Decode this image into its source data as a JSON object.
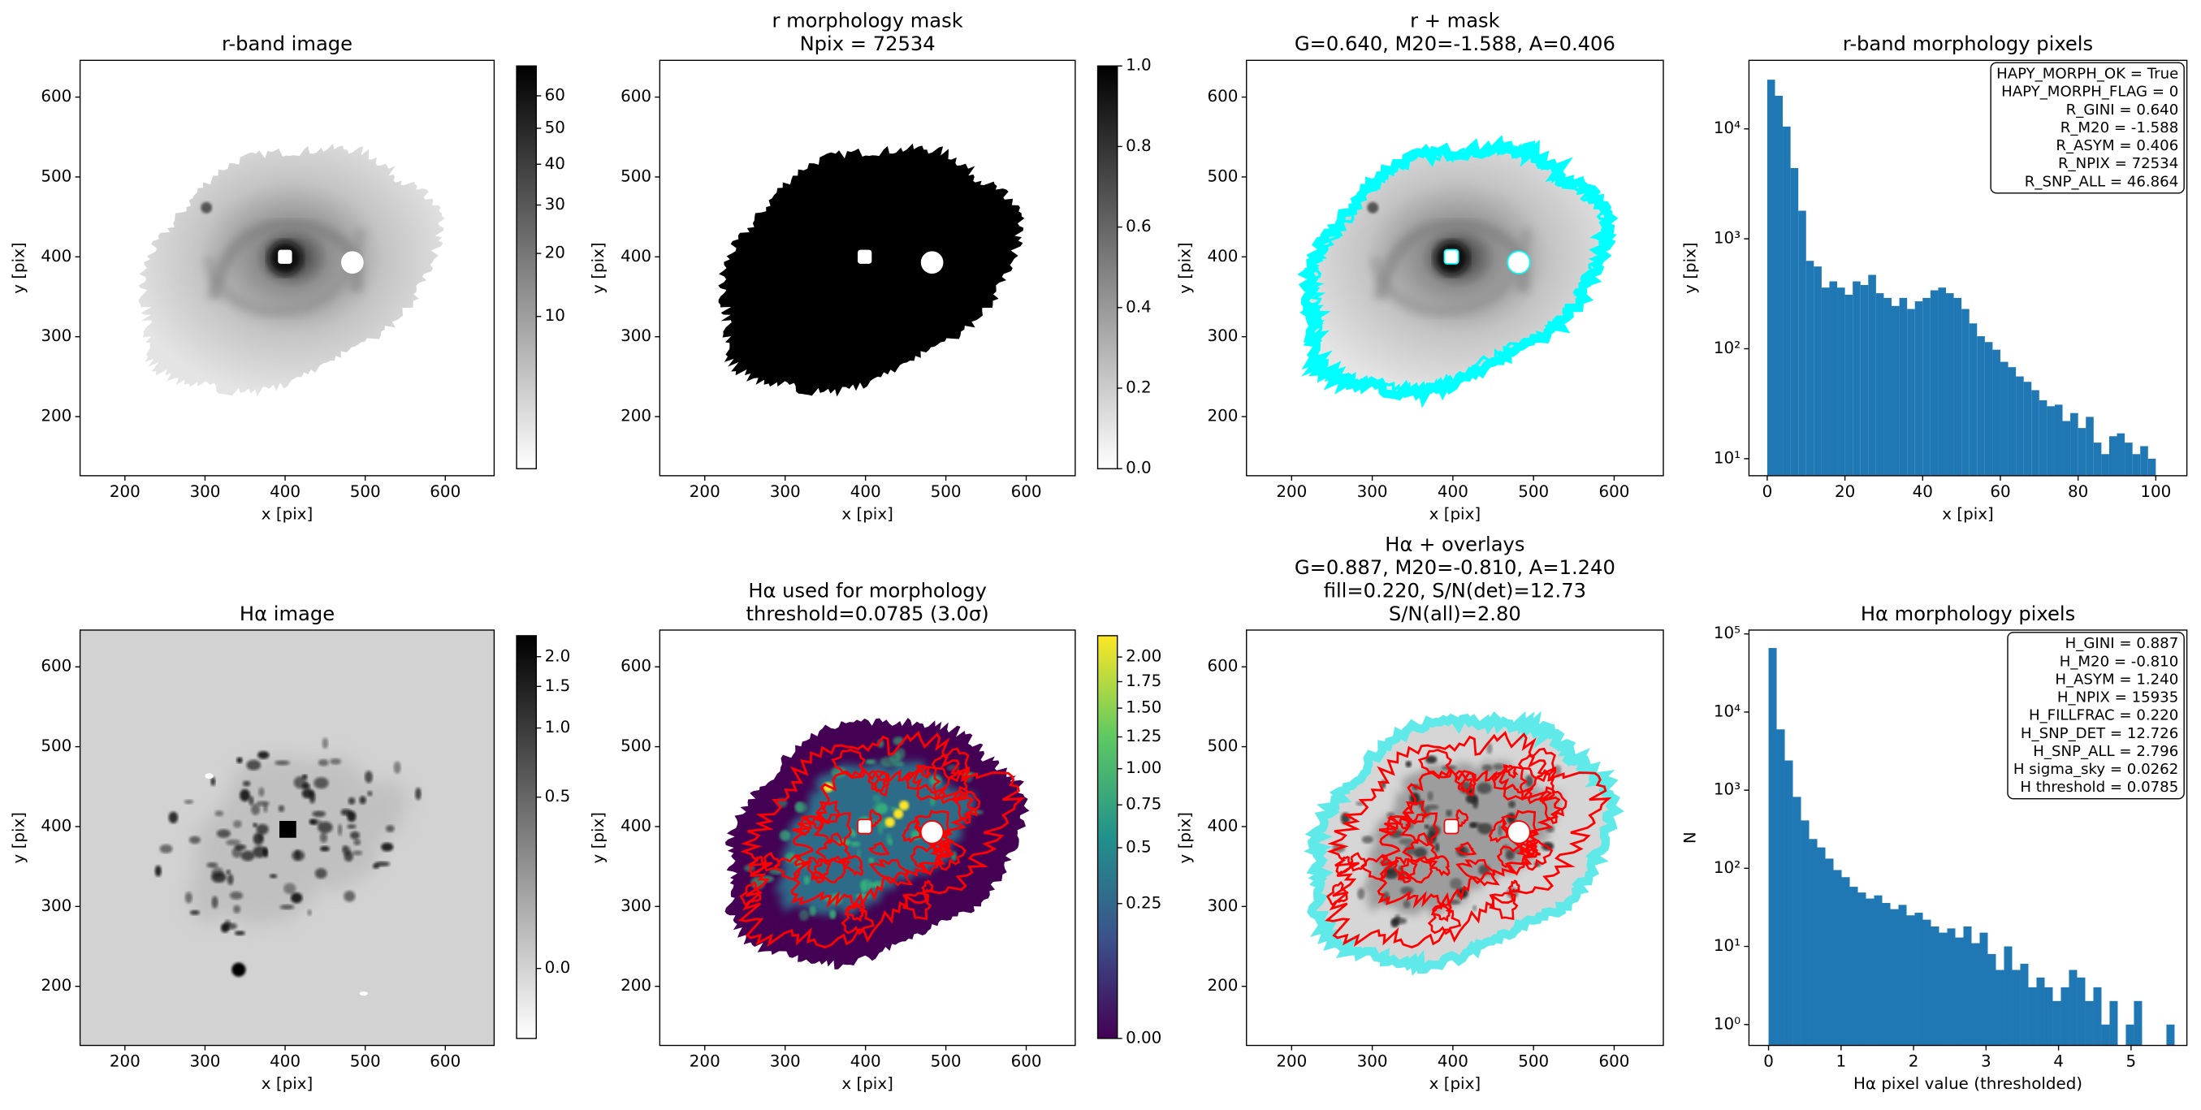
{
  "chart_data": [
    {
      "type": "image",
      "title": [
        "r-band image"
      ],
      "xlabel": "x [pix]",
      "ylabel": "y [pix]",
      "xlim": [
        144,
        661
      ],
      "ylim": [
        126,
        646
      ],
      "xticks": [
        200,
        300,
        400,
        500,
        600
      ],
      "yticks": [
        200,
        300,
        400,
        500,
        600
      ],
      "cmap": "gray_r",
      "colorbar": {
        "clim": [
          0,
          70
        ],
        "scale": "sqrt",
        "ticks": [
          10,
          20,
          30,
          40,
          50,
          60
        ]
      }
    },
    {
      "type": "image",
      "title": [
        "r morphology mask",
        "Npix = 72534"
      ],
      "xlabel": "x [pix]",
      "ylabel": "y [pix]",
      "xlim": [
        144,
        661
      ],
      "ylim": [
        126,
        646
      ],
      "xticks": [
        200,
        300,
        400,
        500,
        600
      ],
      "yticks": [
        200,
        300,
        400,
        500,
        600
      ],
      "cmap": "gray_r",
      "colorbar": {
        "clim": [
          0,
          1
        ],
        "scale": "linear",
        "ticks": [
          {
            "value": 0,
            "label": "0.0"
          },
          0.2,
          0.4,
          0.6,
          0.8,
          {
            "value": 1,
            "label": "1.0"
          }
        ]
      }
    },
    {
      "type": "image",
      "title": [
        "r + mask",
        "G=0.640, M20=-1.588, A=0.406"
      ],
      "xlabel": "x [pix]",
      "ylabel": "y [pix]",
      "xlim": [
        144,
        661
      ],
      "ylim": [
        126,
        646
      ],
      "xticks": [
        200,
        300,
        400,
        500,
        600
      ],
      "yticks": [
        200,
        300,
        400,
        500,
        600
      ],
      "cmap": "gray_r"
    },
    {
      "type": "histogram",
      "title": [
        "r-band morphology pixels"
      ],
      "xlabel": "x [pix]",
      "ylabel": "y [pix]",
      "color": "#1f77b4",
      "log_y": true,
      "bins": [
        0,
        2,
        4,
        6,
        8,
        10,
        12,
        14,
        16,
        18,
        20,
        22,
        24,
        26,
        28,
        30,
        32,
        34,
        36,
        38,
        40,
        42,
        44,
        46,
        48,
        50,
        52,
        54,
        56,
        58,
        60,
        62,
        64,
        66,
        68,
        70,
        72,
        74,
        76,
        78,
        80,
        82,
        84,
        86,
        88,
        90,
        92,
        94,
        96,
        98,
        100
      ],
      "counts": [
        28000,
        20000,
        10500,
        4400,
        1800,
        630,
        560,
        360,
        410,
        360,
        310,
        410,
        380,
        470,
        320,
        290,
        245,
        290,
        230,
        270,
        290,
        340,
        360,
        320,
        290,
        230,
        170,
        130,
        115,
        98,
        76,
        68,
        56,
        50,
        42,
        34,
        30,
        31,
        22,
        26,
        19,
        24,
        14,
        11,
        16,
        17,
        14,
        11,
        13,
        10
      ],
      "xlim": [
        -4.7,
        108
      ],
      "ylim": [
        7,
        42000
      ],
      "xticks": [
        0,
        20,
        40,
        60,
        80,
        100
      ],
      "yticks": [
        {
          "value": 10,
          "label": "10¹"
        },
        {
          "value": 100,
          "label": "10²"
        },
        {
          "value": 1000,
          "label": "10³"
        },
        {
          "value": 10000,
          "label": "10⁴"
        }
      ],
      "annotation": [
        "HAPY_MORPH_OK = True",
        "HAPY_MORPH_FLAG = 0",
        "R_GINI = 0.640",
        "R_M20 = -1.588",
        "R_ASYM = 0.406",
        "R_NPIX = 72534",
        "R_SNP_ALL = 46.864"
      ]
    },
    {
      "type": "image",
      "title": [
        "Hα image"
      ],
      "xlabel": "x [pix]",
      "ylabel": "y [pix]",
      "xlim": [
        144,
        661
      ],
      "ylim": [
        126,
        646
      ],
      "xticks": [
        200,
        300,
        400,
        500,
        600
      ],
      "yticks": [
        200,
        300,
        400,
        500,
        600
      ],
      "cmap": "gray_r",
      "colorbar": {
        "clim": [
          -0.145,
          2.45
        ],
        "scale": "asinh",
        "ticks": [
          {
            "value": 0,
            "label": "0.0"
          },
          0.5,
          {
            "value": 1,
            "label": "1.0"
          },
          1.5,
          {
            "value": 2,
            "label": "2.0"
          }
        ]
      }
    },
    {
      "type": "image",
      "title": [
        "Hα used for morphology",
        "threshold=0.0785 (3.0σ)"
      ],
      "xlabel": "x [pix]",
      "ylabel": "y [pix]",
      "xlim": [
        144,
        661
      ],
      "ylim": [
        126,
        646
      ],
      "xticks": [
        200,
        300,
        400,
        500,
        600
      ],
      "yticks": [
        200,
        300,
        400,
        500,
        600
      ],
      "cmap": "viridis",
      "colorbar": {
        "clim": [
          0,
          2.23
        ],
        "scale": "sqrt",
        "ticks": [
          {
            "value": 0,
            "label": "0.00"
          },
          0.25,
          0.5,
          0.75,
          {
            "value": 1,
            "label": "1.00"
          },
          1.25,
          {
            "value": 1.5,
            "label": "1.50"
          },
          1.75,
          {
            "value": 2,
            "label": "2.00"
          }
        ]
      }
    },
    {
      "type": "image",
      "title": [
        "Hα + overlays",
        "G=0.887, M20=-0.810, A=1.240",
        "fill=0.220, S/N(det)=12.73",
        "S/N(all)=2.80"
      ],
      "xlabel": "x [pix]",
      "ylabel": "y [pix]",
      "xlim": [
        144,
        661
      ],
      "ylim": [
        126,
        646
      ],
      "xticks": [
        200,
        300,
        400,
        500,
        600
      ],
      "yticks": [
        200,
        300,
        400,
        500,
        600
      ],
      "cmap": "gray_r"
    },
    {
      "type": "histogram",
      "title": [
        "Hα morphology pixels"
      ],
      "xlabel": "Hα pixel value (thresholded)",
      "ylabel": "N",
      "color": "#1f77b4",
      "log_y": true,
      "bins": [
        0,
        0.112,
        0.224,
        0.336,
        0.448,
        0.56,
        0.672,
        0.784,
        0.896,
        1.008,
        1.12,
        1.232,
        1.344,
        1.456,
        1.568,
        1.68,
        1.792,
        1.904,
        2.016,
        2.128,
        2.24,
        2.352,
        2.464,
        2.576,
        2.688,
        2.8,
        2.912,
        3.024,
        3.136,
        3.248,
        3.36,
        3.472,
        3.584,
        3.696,
        3.808,
        3.92,
        4.032,
        4.144,
        4.256,
        4.368,
        4.48,
        4.592,
        4.704,
        4.816,
        4.928,
        5.04,
        5.152,
        5.264,
        5.376,
        5.488,
        5.6
      ],
      "counts": [
        66000,
        6000,
        2400,
        820,
        410,
        237,
        185,
        133,
        95,
        77,
        58,
        49,
        41,
        45,
        36,
        30,
        34,
        25,
        27,
        22,
        18,
        15,
        17,
        13,
        18,
        11,
        15,
        8,
        5,
        10,
        5,
        6,
        3,
        4,
        3,
        2,
        3,
        5,
        4,
        2,
        3,
        1,
        2,
        0,
        1,
        2,
        0,
        0,
        0,
        1
      ],
      "xlim": [
        -0.27,
        5.77
      ],
      "ylim": [
        0.54,
        112000
      ],
      "xticks": [
        0,
        1,
        2,
        3,
        4,
        5
      ],
      "yticks": [
        {
          "value": 1,
          "label": "10⁰"
        },
        {
          "value": 10,
          "label": "10¹"
        },
        {
          "value": 100,
          "label": "10²"
        },
        {
          "value": 1000,
          "label": "10³"
        },
        {
          "value": 10000,
          "label": "10⁴"
        },
        {
          "value": 100000,
          "label": "10⁵"
        }
      ],
      "annotation": [
        "H_GINI = 0.887",
        "H_M20 = -0.810",
        "H_ASYM = 1.240",
        "H_NPIX = 15935",
        "H_FILLFRAC = 0.220",
        "H_SNP_DET = 12.726",
        "H_SNP_ALL = 2.796",
        "H sigma_sky = 0.0262",
        "H threshold = 0.0785"
      ]
    }
  ]
}
